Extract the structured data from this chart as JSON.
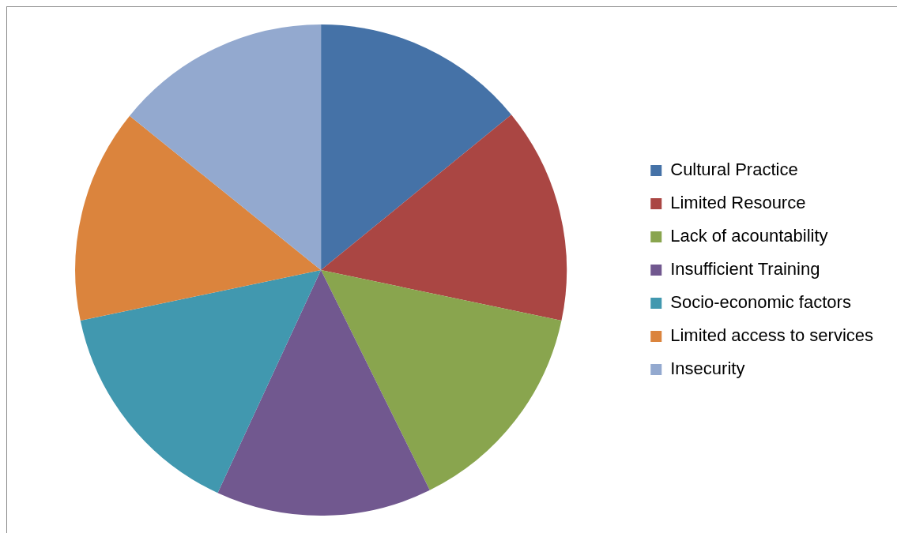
{
  "chart_data": {
    "type": "pie",
    "categories": [
      "Cultural Practice",
      "Limited Resource",
      "Lack of acountability",
      "Insufficient Training",
      "Socio-economic factors",
      "Limited access to services",
      "Insecurity"
    ],
    "values": [
      14.1,
      14.2,
      14.4,
      14.2,
      14.8,
      14.1,
      14.2
    ],
    "colors": [
      "#4572a7",
      "#aa4643",
      "#89a54e",
      "#71588f",
      "#4198af",
      "#db843d",
      "#93a9cf"
    ],
    "legend": "right"
  }
}
